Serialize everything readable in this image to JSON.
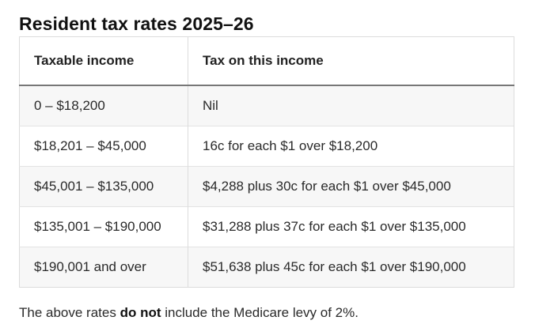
{
  "heading": "Resident tax rates 2025–26",
  "table": {
    "headers": [
      "Taxable income",
      "Tax on this income"
    ],
    "rows": [
      [
        "0 – $18,200",
        "Nil"
      ],
      [
        "$18,201 – $45,000",
        "16c for each $1 over $18,200"
      ],
      [
        "$45,001 – $135,000",
        "$4,288 plus 30c for each $1 over $45,000"
      ],
      [
        "$135,001 – $190,000",
        "$31,288 plus 37c for each $1 over $135,000"
      ],
      [
        "$190,001 and over",
        "$51,638 plus 45c for each $1 over $190,000"
      ]
    ]
  },
  "note": {
    "before": "The above rates ",
    "emphasis": "do not",
    "after": " include the Medicare levy of 2%."
  }
}
